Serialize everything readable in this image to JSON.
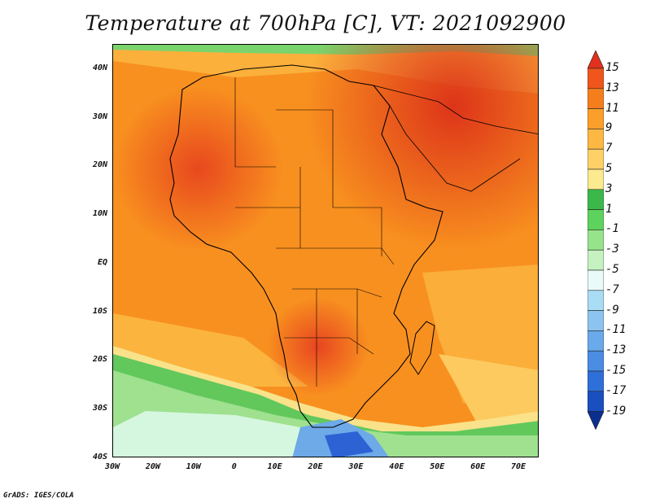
{
  "title": "Temperature at 700hPa [C], VT: 2021092900",
  "credit": "GrADS: IGES/COLA",
  "map": {
    "projection": "lat-lon",
    "region": "Africa",
    "lon_range": [
      -30,
      75
    ],
    "lat_range": [
      -40,
      45
    ]
  },
  "axes": {
    "y_ticks": [
      {
        "label": "40N",
        "lat": 40
      },
      {
        "label": "30N",
        "lat": 30
      },
      {
        "label": "20N",
        "lat": 20
      },
      {
        "label": "10N",
        "lat": 10
      },
      {
        "label": "EQ",
        "lat": 0
      },
      {
        "label": "10S",
        "lat": -10
      },
      {
        "label": "20S",
        "lat": -20
      },
      {
        "label": "30S",
        "lat": -30
      },
      {
        "label": "40S",
        "lat": -40
      }
    ],
    "x_ticks": [
      {
        "label": "30W",
        "lon": -30
      },
      {
        "label": "20W",
        "lon": -20
      },
      {
        "label": "10W",
        "lon": -10
      },
      {
        "label": "0",
        "lon": 0
      },
      {
        "label": "10E",
        "lon": 10
      },
      {
        "label": "20E",
        "lon": 20
      },
      {
        "label": "30E",
        "lon": 30
      },
      {
        "label": "40E",
        "lon": 40
      },
      {
        "label": "50E",
        "lon": 50
      },
      {
        "label": "60E",
        "lon": 60
      },
      {
        "label": "70E",
        "lon": 70
      }
    ]
  },
  "colorbar": {
    "levels": [
      "15",
      "13",
      "11",
      "9",
      "7",
      "5",
      "3",
      "1",
      "-1",
      "-3",
      "-5",
      "-7",
      "-9",
      "-11",
      "-13",
      "-15",
      "-17",
      "-19"
    ],
    "colors": [
      "#e0301e",
      "#f0561c",
      "#f57e1c",
      "#fb9f2a",
      "#fdb743",
      "#fed066",
      "#fbea8f",
      "#3cb84a",
      "#5dd35d",
      "#96e38c",
      "#c5f2c0",
      "#e8fbf8",
      "#a9dcf5",
      "#8cc4ef",
      "#6aaaea",
      "#4a8de3",
      "#2f6fd9",
      "#1a4fbf",
      "#0b2f8f"
    ]
  }
}
